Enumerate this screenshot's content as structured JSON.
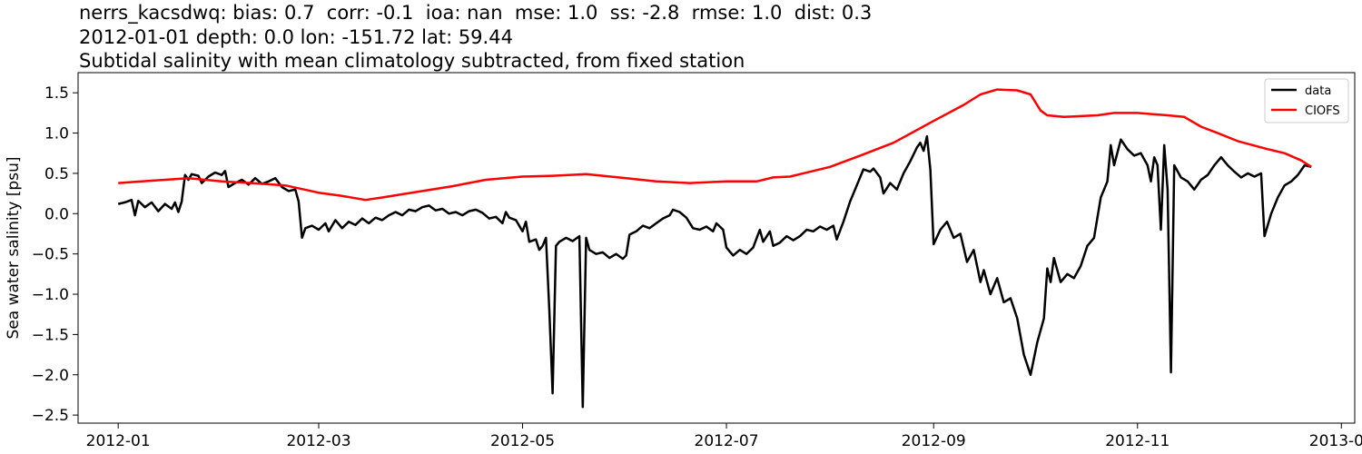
{
  "chart_data": {
    "type": "line",
    "title_lines": [
      "nerrs_kacsdwq: bias: 0.7  corr: -0.1  ioa: nan  mse: 1.0  ss: -2.8  rmse: 1.0  dist: 0.3",
      "2012-01-01 depth: 0.0 lon: -151.72 lat: 59.44",
      "Subtidal salinity with mean climatology subtracted, from fixed station"
    ],
    "xlabel": "",
    "ylabel": "Sea water salinity [psu]",
    "xlim": [
      "2011-12-20",
      "2013-01-05"
    ],
    "ylim": [
      -2.6,
      1.75
    ],
    "x_ticks": [
      "2012-01-01",
      "2012-03-01",
      "2012-05-01",
      "2012-07-01",
      "2012-09-01",
      "2012-11-01",
      "2013-01-01"
    ],
    "x_tick_labels": [
      "2012-01",
      "2012-03",
      "2012-05",
      "2012-07",
      "2012-09",
      "2012-11",
      "2013-01"
    ],
    "y_ticks": [
      -2.5,
      -2.0,
      -1.5,
      -1.0,
      -0.5,
      0.0,
      0.5,
      1.0,
      1.5
    ],
    "y_tick_labels": [
      "−2.5",
      "−2.0",
      "−1.5",
      "−1.0",
      "−0.5",
      "0.0",
      "0.5",
      "1.0",
      "1.5"
    ],
    "grid": false,
    "legend_position": "top-right",
    "series": [
      {
        "name": "data",
        "color": "#000000",
        "points": [
          [
            "2012-01-01",
            0.12
          ],
          [
            "2012-01-03",
            0.14
          ],
          [
            "2012-01-05",
            0.17
          ],
          [
            "2012-01-06",
            -0.02
          ],
          [
            "2012-01-07",
            0.16
          ],
          [
            "2012-01-09",
            0.08
          ],
          [
            "2012-01-11",
            0.14
          ],
          [
            "2012-01-13",
            0.03
          ],
          [
            "2012-01-15",
            0.12
          ],
          [
            "2012-01-17",
            0.06
          ],
          [
            "2012-01-18",
            0.14
          ],
          [
            "2012-01-19",
            0.02
          ],
          [
            "2012-01-20",
            0.15
          ],
          [
            "2012-01-21",
            0.48
          ],
          [
            "2012-01-22",
            0.42
          ],
          [
            "2012-01-23",
            0.49
          ],
          [
            "2012-01-25",
            0.47
          ],
          [
            "2012-01-26",
            0.38
          ],
          [
            "2012-01-28",
            0.46
          ],
          [
            "2012-01-30",
            0.51
          ],
          [
            "2012-02-01",
            0.48
          ],
          [
            "2012-02-02",
            0.53
          ],
          [
            "2012-02-03",
            0.33
          ],
          [
            "2012-02-05",
            0.38
          ],
          [
            "2012-02-07",
            0.42
          ],
          [
            "2012-02-09",
            0.36
          ],
          [
            "2012-02-11",
            0.44
          ],
          [
            "2012-02-13",
            0.37
          ],
          [
            "2012-02-15",
            0.4
          ],
          [
            "2012-02-17",
            0.44
          ],
          [
            "2012-02-19",
            0.33
          ],
          [
            "2012-02-21",
            0.28
          ],
          [
            "2012-02-23",
            0.3
          ],
          [
            "2012-02-24",
            0.15
          ],
          [
            "2012-02-25",
            -0.3
          ],
          [
            "2012-02-26",
            -0.18
          ],
          [
            "2012-02-28",
            -0.15
          ],
          [
            "2012-03-01",
            -0.2
          ],
          [
            "2012-03-03",
            -0.12
          ],
          [
            "2012-03-04",
            -0.22
          ],
          [
            "2012-03-06",
            -0.08
          ],
          [
            "2012-03-08",
            -0.18
          ],
          [
            "2012-03-10",
            -0.1
          ],
          [
            "2012-03-12",
            -0.14
          ],
          [
            "2012-03-14",
            -0.06
          ],
          [
            "2012-03-16",
            -0.12
          ],
          [
            "2012-03-18",
            -0.05
          ],
          [
            "2012-03-20",
            -0.08
          ],
          [
            "2012-03-22",
            -0.02
          ],
          [
            "2012-03-24",
            0.02
          ],
          [
            "2012-03-26",
            -0.02
          ],
          [
            "2012-03-28",
            0.05
          ],
          [
            "2012-03-30",
            0.03
          ],
          [
            "2012-04-01",
            0.08
          ],
          [
            "2012-04-03",
            0.1
          ],
          [
            "2012-04-05",
            0.04
          ],
          [
            "2012-04-07",
            0.06
          ],
          [
            "2012-04-09",
            0.0
          ],
          [
            "2012-04-11",
            0.02
          ],
          [
            "2012-04-13",
            -0.02
          ],
          [
            "2012-04-15",
            0.03
          ],
          [
            "2012-04-17",
            0.05
          ],
          [
            "2012-04-19",
            0.01
          ],
          [
            "2012-04-21",
            -0.06
          ],
          [
            "2012-04-23",
            -0.04
          ],
          [
            "2012-04-25",
            -0.12
          ],
          [
            "2012-04-26",
            0.02
          ],
          [
            "2012-04-27",
            -0.05
          ],
          [
            "2012-04-29",
            -0.08
          ],
          [
            "2012-05-01",
            -0.22
          ],
          [
            "2012-05-02",
            -0.1
          ],
          [
            "2012-05-03",
            -0.35
          ],
          [
            "2012-05-05",
            -0.32
          ],
          [
            "2012-05-06",
            -0.45
          ],
          [
            "2012-05-07",
            -0.4
          ],
          [
            "2012-05-08",
            -0.3
          ],
          [
            "2012-05-09",
            -1.2
          ],
          [
            "2012-05-10",
            -2.23
          ],
          [
            "2012-05-11",
            -0.4
          ],
          [
            "2012-05-12",
            -0.35
          ],
          [
            "2012-05-14",
            -0.3
          ],
          [
            "2012-05-16",
            -0.34
          ],
          [
            "2012-05-18",
            -0.28
          ],
          [
            "2012-05-19",
            -2.4
          ],
          [
            "2012-05-20",
            -0.3
          ],
          [
            "2012-05-21",
            -0.45
          ],
          [
            "2012-05-23",
            -0.5
          ],
          [
            "2012-05-25",
            -0.48
          ],
          [
            "2012-05-27",
            -0.55
          ],
          [
            "2012-05-29",
            -0.5
          ],
          [
            "2012-05-31",
            -0.56
          ],
          [
            "2012-06-01",
            -0.52
          ],
          [
            "2012-06-02",
            -0.26
          ],
          [
            "2012-06-04",
            -0.22
          ],
          [
            "2012-06-06",
            -0.15
          ],
          [
            "2012-06-08",
            -0.18
          ],
          [
            "2012-06-10",
            -0.12
          ],
          [
            "2012-06-12",
            -0.06
          ],
          [
            "2012-06-14",
            -0.02
          ],
          [
            "2012-06-15",
            0.05
          ],
          [
            "2012-06-17",
            0.02
          ],
          [
            "2012-06-19",
            -0.05
          ],
          [
            "2012-06-21",
            -0.18
          ],
          [
            "2012-06-23",
            -0.2
          ],
          [
            "2012-06-25",
            -0.16
          ],
          [
            "2012-06-27",
            -0.22
          ],
          [
            "2012-06-28",
            -0.12
          ],
          [
            "2012-06-30",
            -0.2
          ],
          [
            "2012-07-01",
            -0.42
          ],
          [
            "2012-07-03",
            -0.52
          ],
          [
            "2012-07-05",
            -0.45
          ],
          [
            "2012-07-07",
            -0.5
          ],
          [
            "2012-07-09",
            -0.42
          ],
          [
            "2012-07-11",
            -0.2
          ],
          [
            "2012-07-12",
            -0.35
          ],
          [
            "2012-07-14",
            -0.22
          ],
          [
            "2012-07-15",
            -0.4
          ],
          [
            "2012-07-17",
            -0.36
          ],
          [
            "2012-07-19",
            -0.28
          ],
          [
            "2012-07-21",
            -0.33
          ],
          [
            "2012-07-23",
            -0.28
          ],
          [
            "2012-07-25",
            -0.2
          ],
          [
            "2012-07-27",
            -0.22
          ],
          [
            "2012-07-29",
            -0.16
          ],
          [
            "2012-07-31",
            -0.2
          ],
          [
            "2012-08-02",
            -0.15
          ],
          [
            "2012-08-03",
            -0.32
          ],
          [
            "2012-08-05",
            -0.1
          ],
          [
            "2012-08-07",
            0.15
          ],
          [
            "2012-08-09",
            0.35
          ],
          [
            "2012-08-11",
            0.55
          ],
          [
            "2012-08-13",
            0.52
          ],
          [
            "2012-08-14",
            0.56
          ],
          [
            "2012-08-16",
            0.45
          ],
          [
            "2012-08-17",
            0.25
          ],
          [
            "2012-08-19",
            0.38
          ],
          [
            "2012-08-21",
            0.3
          ],
          [
            "2012-08-23",
            0.5
          ],
          [
            "2012-08-25",
            0.65
          ],
          [
            "2012-08-27",
            0.82
          ],
          [
            "2012-08-28",
            0.88
          ],
          [
            "2012-08-29",
            0.78
          ],
          [
            "2012-08-30",
            0.96
          ],
          [
            "2012-08-31",
            0.55
          ],
          [
            "2012-09-01",
            -0.38
          ],
          [
            "2012-09-03",
            -0.2
          ],
          [
            "2012-09-05",
            -0.1
          ],
          [
            "2012-09-07",
            -0.3
          ],
          [
            "2012-09-09",
            -0.25
          ],
          [
            "2012-09-11",
            -0.6
          ],
          [
            "2012-09-13",
            -0.45
          ],
          [
            "2012-09-15",
            -0.85
          ],
          [
            "2012-09-16",
            -0.7
          ],
          [
            "2012-09-18",
            -1.0
          ],
          [
            "2012-09-20",
            -0.8
          ],
          [
            "2012-09-22",
            -1.1
          ],
          [
            "2012-09-24",
            -1.05
          ],
          [
            "2012-09-26",
            -1.3
          ],
          [
            "2012-09-28",
            -1.75
          ],
          [
            "2012-09-30",
            -2.0
          ],
          [
            "2012-10-02",
            -1.6
          ],
          [
            "2012-10-04",
            -1.3
          ],
          [
            "2012-10-05",
            -0.68
          ],
          [
            "2012-10-06",
            -0.85
          ],
          [
            "2012-10-07",
            -0.55
          ],
          [
            "2012-10-09",
            -0.85
          ],
          [
            "2012-10-11",
            -0.75
          ],
          [
            "2012-10-13",
            -0.8
          ],
          [
            "2012-10-15",
            -0.65
          ],
          [
            "2012-10-17",
            -0.4
          ],
          [
            "2012-10-19",
            -0.3
          ],
          [
            "2012-10-21",
            0.2
          ],
          [
            "2012-10-23",
            0.4
          ],
          [
            "2012-10-24",
            0.85
          ],
          [
            "2012-10-25",
            0.6
          ],
          [
            "2012-10-27",
            0.92
          ],
          [
            "2012-10-29",
            0.8
          ],
          [
            "2012-10-31",
            0.72
          ],
          [
            "2012-11-02",
            0.75
          ],
          [
            "2012-11-04",
            0.6
          ],
          [
            "2012-11-05",
            0.4
          ],
          [
            "2012-11-06",
            0.7
          ],
          [
            "2012-11-07",
            0.6
          ],
          [
            "2012-11-08",
            -0.2
          ],
          [
            "2012-11-09",
            0.85
          ],
          [
            "2012-11-10",
            0.3
          ],
          [
            "2012-11-11",
            -1.97
          ],
          [
            "2012-11-12",
            0.6
          ],
          [
            "2012-11-14",
            0.45
          ],
          [
            "2012-11-16",
            0.4
          ],
          [
            "2012-11-18",
            0.3
          ],
          [
            "2012-11-20",
            0.42
          ],
          [
            "2012-11-22",
            0.48
          ],
          [
            "2012-11-24",
            0.6
          ],
          [
            "2012-11-26",
            0.7
          ],
          [
            "2012-11-28",
            0.6
          ],
          [
            "2012-11-30",
            0.52
          ],
          [
            "2012-12-02",
            0.45
          ],
          [
            "2012-12-04",
            0.5
          ],
          [
            "2012-12-06",
            0.46
          ],
          [
            "2012-12-08",
            0.5
          ],
          [
            "2012-12-09",
            -0.28
          ],
          [
            "2012-12-11",
            0.0
          ],
          [
            "2012-12-13",
            0.2
          ],
          [
            "2012-12-15",
            0.35
          ],
          [
            "2012-12-17",
            0.4
          ],
          [
            "2012-12-19",
            0.48
          ],
          [
            "2012-12-21",
            0.6
          ],
          [
            "2012-12-23",
            0.58
          ]
        ]
      },
      {
        "name": "CIOFS",
        "color": "#ff0000",
        "points": [
          [
            "2012-01-01",
            0.38
          ],
          [
            "2012-01-08",
            0.4
          ],
          [
            "2012-01-15",
            0.42
          ],
          [
            "2012-01-22",
            0.44
          ],
          [
            "2012-02-01",
            0.4
          ],
          [
            "2012-02-10",
            0.38
          ],
          [
            "2012-02-20",
            0.35
          ],
          [
            "2012-03-01",
            0.26
          ],
          [
            "2012-03-08",
            0.22
          ],
          [
            "2012-03-15",
            0.17
          ],
          [
            "2012-03-20",
            0.2
          ],
          [
            "2012-04-01",
            0.28
          ],
          [
            "2012-04-10",
            0.34
          ],
          [
            "2012-04-20",
            0.42
          ],
          [
            "2012-05-01",
            0.46
          ],
          [
            "2012-05-10",
            0.47
          ],
          [
            "2012-05-20",
            0.49
          ],
          [
            "2012-06-01",
            0.44
          ],
          [
            "2012-06-10",
            0.4
          ],
          [
            "2012-06-20",
            0.38
          ],
          [
            "2012-07-01",
            0.4
          ],
          [
            "2012-07-10",
            0.4
          ],
          [
            "2012-07-15",
            0.45
          ],
          [
            "2012-07-20",
            0.46
          ],
          [
            "2012-08-01",
            0.58
          ],
          [
            "2012-08-10",
            0.72
          ],
          [
            "2012-08-20",
            0.88
          ],
          [
            "2012-09-01",
            1.15
          ],
          [
            "2012-09-10",
            1.35
          ],
          [
            "2012-09-15",
            1.48
          ],
          [
            "2012-09-20",
            1.54
          ],
          [
            "2012-09-26",
            1.53
          ],
          [
            "2012-09-30",
            1.48
          ],
          [
            "2012-10-03",
            1.28
          ],
          [
            "2012-10-05",
            1.22
          ],
          [
            "2012-10-10",
            1.2
          ],
          [
            "2012-10-20",
            1.22
          ],
          [
            "2012-10-25",
            1.25
          ],
          [
            "2012-11-01",
            1.25
          ],
          [
            "2012-11-10",
            1.22
          ],
          [
            "2012-11-15",
            1.2
          ],
          [
            "2012-11-20",
            1.08
          ],
          [
            "2012-11-25",
            1.0
          ],
          [
            "2012-12-01",
            0.9
          ],
          [
            "2012-12-10",
            0.8
          ],
          [
            "2012-12-15",
            0.75
          ],
          [
            "2012-12-20",
            0.66
          ],
          [
            "2012-12-23",
            0.58
          ]
        ]
      }
    ]
  }
}
